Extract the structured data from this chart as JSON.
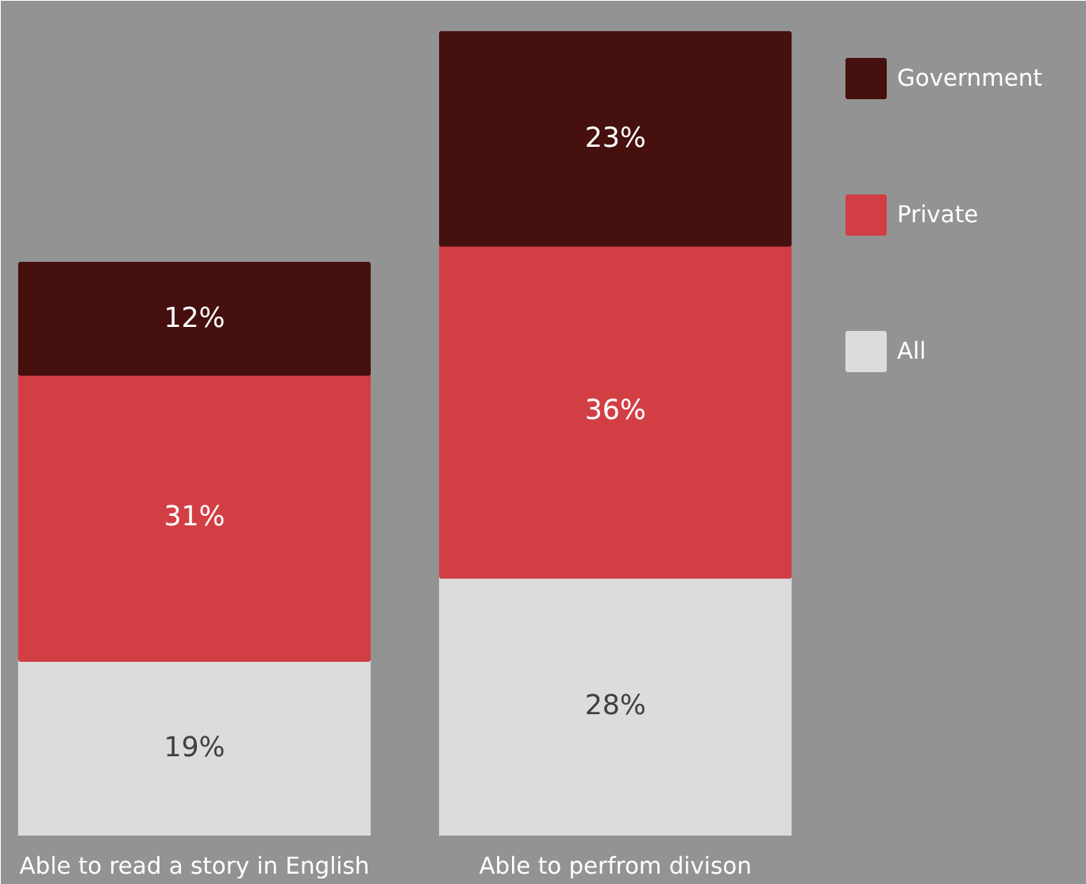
{
  "chart_data": {
    "type": "bar",
    "stacked": true,
    "categories": [
      "Able to read a story in English",
      "Able to perfrom divison"
    ],
    "series": [
      {
        "name": "All",
        "color": "#dcdcdc",
        "values": [
          19,
          28
        ],
        "value_labels": [
          "19%",
          "28%"
        ]
      },
      {
        "name": "Private",
        "color": "#d13f45",
        "values": [
          31,
          36
        ],
        "value_labels": [
          "31%",
          "36%"
        ]
      },
      {
        "name": "Government",
        "color": "#45100e",
        "values": [
          12,
          23
        ],
        "value_labels": [
          "12%",
          "23%"
        ]
      }
    ],
    "legend": "right",
    "grid": false
  }
}
